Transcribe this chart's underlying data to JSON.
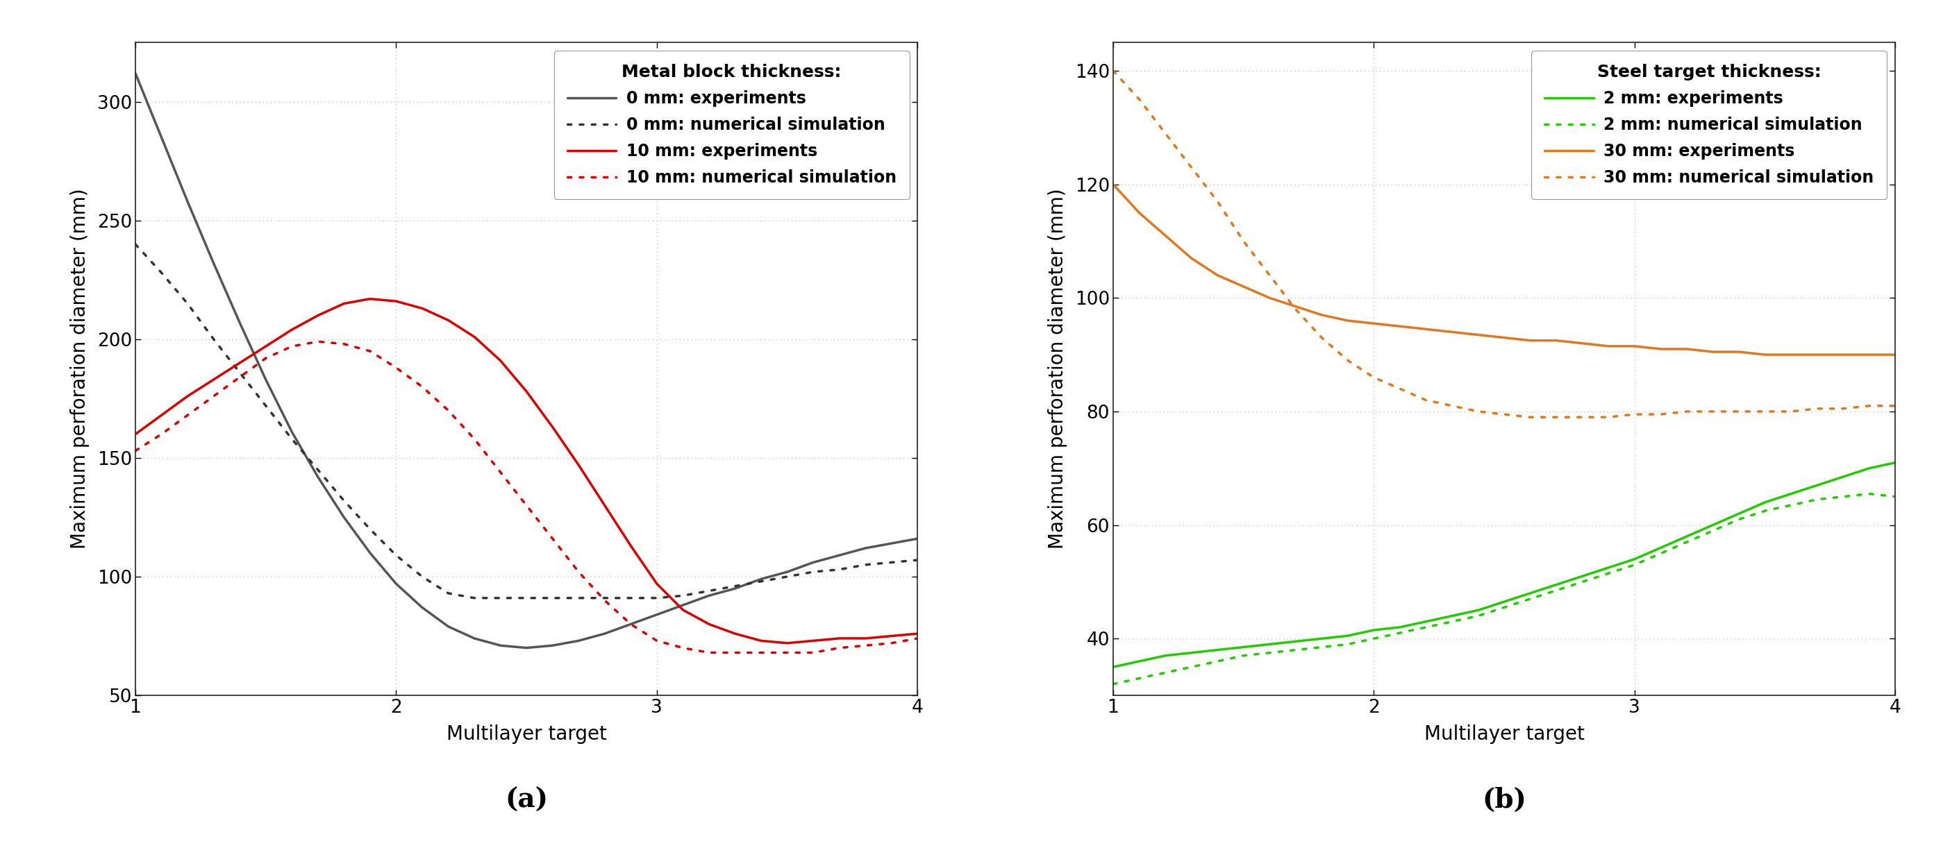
{
  "fig_width": 27.85,
  "fig_height": 12.22,
  "background_color": "#ffffff",
  "panel_a": {
    "title_label": "(a)",
    "xlabel": "Multilayer target",
    "ylabel": "Maximum perforation diameter (mm)",
    "xlim": [
      1,
      4
    ],
    "ylim": [
      50,
      325
    ],
    "yticks": [
      50,
      100,
      150,
      200,
      250,
      300
    ],
    "xticks": [
      1,
      2,
      3,
      4
    ],
    "legend_title": "Metal block thickness:",
    "grid": true,
    "curves": {
      "gray_solid": {
        "label": "0 mm: experiments",
        "color": "#555555",
        "linestyle": "solid",
        "linewidth": 2.5,
        "x": [
          1.0,
          1.1,
          1.2,
          1.3,
          1.4,
          1.5,
          1.6,
          1.7,
          1.8,
          1.9,
          2.0,
          2.1,
          2.2,
          2.3,
          2.4,
          2.5,
          2.6,
          2.7,
          2.8,
          2.9,
          3.0,
          3.1,
          3.2,
          3.3,
          3.4,
          3.5,
          3.6,
          3.7,
          3.8,
          3.9,
          4.0
        ],
        "y": [
          312,
          285,
          258,
          232,
          207,
          183,
          161,
          142,
          125,
          110,
          97,
          87,
          79,
          74,
          71,
          70,
          71,
          73,
          76,
          80,
          84,
          88,
          92,
          95,
          99,
          102,
          106,
          109,
          112,
          114,
          116
        ]
      },
      "gray_dotted": {
        "label": "0 mm: numerical simulation",
        "color": "#333333",
        "linestyle": "dotted",
        "linewidth": 2.5,
        "x": [
          1.0,
          1.1,
          1.2,
          1.3,
          1.4,
          1.5,
          1.6,
          1.7,
          1.8,
          1.9,
          2.0,
          2.1,
          2.2,
          2.3,
          2.4,
          2.5,
          2.6,
          2.7,
          2.8,
          2.9,
          3.0,
          3.1,
          3.2,
          3.3,
          3.4,
          3.5,
          3.6,
          3.7,
          3.8,
          3.9,
          4.0
        ],
        "y": [
          240,
          228,
          215,
          200,
          186,
          172,
          158,
          145,
          132,
          120,
          109,
          100,
          93,
          91,
          91,
          91,
          91,
          91,
          91,
          91,
          91,
          92,
          94,
          96,
          98,
          100,
          102,
          103,
          105,
          106,
          107
        ]
      },
      "red_solid": {
        "label": "10 mm: experiments",
        "color": "#dd0000",
        "linestyle": "solid",
        "linewidth": 2.5,
        "x": [
          1.0,
          1.1,
          1.2,
          1.3,
          1.4,
          1.5,
          1.6,
          1.7,
          1.8,
          1.9,
          2.0,
          2.1,
          2.2,
          2.3,
          2.4,
          2.5,
          2.6,
          2.7,
          2.8,
          2.9,
          3.0,
          3.1,
          3.2,
          3.3,
          3.4,
          3.5,
          3.6,
          3.7,
          3.8,
          3.9,
          4.0
        ],
        "y": [
          160,
          168,
          176,
          183,
          190,
          197,
          204,
          210,
          215,
          217,
          216,
          213,
          208,
          201,
          191,
          178,
          163,
          147,
          130,
          113,
          97,
          86,
          80,
          76,
          73,
          72,
          73,
          74,
          74,
          75,
          76
        ]
      },
      "red_dotted": {
        "label": "10 mm: numerical simulation",
        "color": "#dd0000",
        "linestyle": "dotted",
        "linewidth": 2.5,
        "x": [
          1.0,
          1.1,
          1.2,
          1.3,
          1.4,
          1.5,
          1.6,
          1.7,
          1.8,
          1.9,
          2.0,
          2.1,
          2.2,
          2.3,
          2.4,
          2.5,
          2.6,
          2.7,
          2.8,
          2.9,
          3.0,
          3.1,
          3.2,
          3.3,
          3.4,
          3.5,
          3.6,
          3.7,
          3.8,
          3.9,
          4.0
        ],
        "y": [
          153,
          160,
          168,
          176,
          184,
          192,
          197,
          199,
          198,
          195,
          188,
          180,
          170,
          158,
          144,
          130,
          116,
          102,
          90,
          80,
          73,
          70,
          68,
          68,
          68,
          68,
          68,
          70,
          71,
          72,
          74
        ]
      }
    }
  },
  "panel_b": {
    "title_label": "(b)",
    "xlabel": "Multilayer target",
    "ylabel": "Maximum perforation diameter (mm)",
    "xlim": [
      1,
      4
    ],
    "ylim": [
      30,
      145
    ],
    "yticks": [
      40,
      60,
      80,
      100,
      120,
      140
    ],
    "xticks": [
      1,
      2,
      3,
      4
    ],
    "legend_title": "Steel target thickness:",
    "grid": true,
    "curves": {
      "green_solid": {
        "label": "2 mm: experiments",
        "color": "#22cc00",
        "linestyle": "solid",
        "linewidth": 2.5,
        "x": [
          1.0,
          1.1,
          1.2,
          1.3,
          1.4,
          1.5,
          1.6,
          1.7,
          1.8,
          1.9,
          2.0,
          2.1,
          2.2,
          2.3,
          2.4,
          2.5,
          2.6,
          2.7,
          2.8,
          2.9,
          3.0,
          3.1,
          3.2,
          3.3,
          3.4,
          3.5,
          3.6,
          3.7,
          3.8,
          3.9,
          4.0
        ],
        "y": [
          35,
          36,
          37,
          37.5,
          38,
          38.5,
          39,
          39.5,
          40,
          40.5,
          41.5,
          42,
          43,
          44,
          45,
          46.5,
          48,
          49.5,
          51,
          52.5,
          54,
          56,
          58,
          60,
          62,
          64,
          65.5,
          67,
          68.5,
          70,
          71
        ]
      },
      "green_dotted": {
        "label": "2 mm: numerical simulation",
        "color": "#22cc00",
        "linestyle": "dotted",
        "linewidth": 2.5,
        "x": [
          1.0,
          1.1,
          1.2,
          1.3,
          1.4,
          1.5,
          1.6,
          1.7,
          1.8,
          1.9,
          2.0,
          2.1,
          2.2,
          2.3,
          2.4,
          2.5,
          2.6,
          2.7,
          2.8,
          2.9,
          3.0,
          3.1,
          3.2,
          3.3,
          3.4,
          3.5,
          3.6,
          3.7,
          3.8,
          3.9,
          4.0
        ],
        "y": [
          32,
          33,
          34,
          35,
          36,
          37,
          37.5,
          38,
          38.5,
          39,
          40,
          41,
          42,
          43,
          44,
          45.5,
          47,
          48.5,
          50,
          51.5,
          53,
          55,
          57,
          59,
          61,
          62.5,
          63.5,
          64.5,
          65,
          65.5,
          65
        ]
      },
      "orange_solid": {
        "label": "30 mm: experiments",
        "color": "#e07820",
        "linestyle": "solid",
        "linewidth": 2.5,
        "x": [
          1.0,
          1.1,
          1.2,
          1.3,
          1.4,
          1.5,
          1.6,
          1.7,
          1.8,
          1.9,
          2.0,
          2.1,
          2.2,
          2.3,
          2.4,
          2.5,
          2.6,
          2.7,
          2.8,
          2.9,
          3.0,
          3.1,
          3.2,
          3.3,
          3.4,
          3.5,
          3.6,
          3.7,
          3.8,
          3.9,
          4.0
        ],
        "y": [
          120,
          115,
          111,
          107,
          104,
          102,
          100,
          98.5,
          97,
          96,
          95.5,
          95,
          94.5,
          94,
          93.5,
          93,
          92.5,
          92.5,
          92,
          91.5,
          91.5,
          91,
          91,
          90.5,
          90.5,
          90,
          90,
          90,
          90,
          90,
          90
        ]
      },
      "orange_dotted": {
        "label": "30 mm: numerical simulation",
        "color": "#e07820",
        "linestyle": "dotted",
        "linewidth": 2.5,
        "x": [
          1.0,
          1.1,
          1.2,
          1.3,
          1.4,
          1.5,
          1.6,
          1.7,
          1.8,
          1.9,
          2.0,
          2.1,
          2.2,
          2.3,
          2.4,
          2.5,
          2.6,
          2.7,
          2.8,
          2.9,
          3.0,
          3.1,
          3.2,
          3.3,
          3.4,
          3.5,
          3.6,
          3.7,
          3.8,
          3.9,
          4.0
        ],
        "y": [
          140,
          135,
          129,
          123,
          117,
          110,
          104,
          98,
          93,
          89,
          86,
          84,
          82,
          81,
          80,
          79.5,
          79,
          79,
          79,
          79,
          79.5,
          79.5,
          80,
          80,
          80,
          80,
          80,
          80.5,
          80.5,
          81,
          81
        ]
      }
    }
  }
}
